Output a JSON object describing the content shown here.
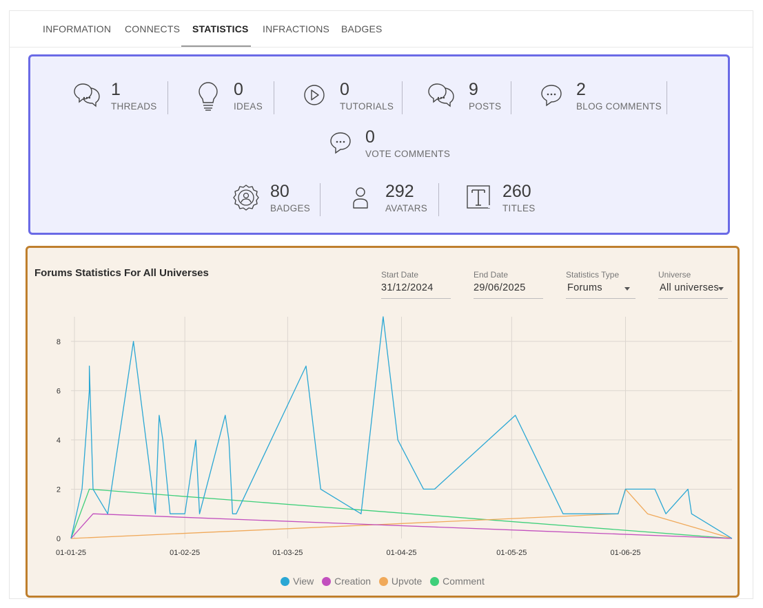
{
  "tabs": [
    {
      "label": "INFORMATION",
      "active": false
    },
    {
      "label": "CONNECTS",
      "active": false
    },
    {
      "label": "STATISTICS",
      "active": true
    },
    {
      "label": "INFRACTIONS",
      "active": false
    },
    {
      "label": "BADGES",
      "active": false
    }
  ],
  "stats": {
    "threads": {
      "value": "1",
      "label": "THREADS",
      "icon": "chat-bubbles-icon"
    },
    "ideas": {
      "value": "0",
      "label": "IDEAS",
      "icon": "lightbulb-icon"
    },
    "tutorials": {
      "value": "0",
      "label": "TUTORIALS",
      "icon": "play-circle-icon"
    },
    "posts": {
      "value": "9",
      "label": "POSTS",
      "icon": "chat-bubbles-icon"
    },
    "blog_comments": {
      "value": "2",
      "label": "BLOG COMMENTS",
      "icon": "chat-bubble-icon"
    },
    "vote_comments": {
      "value": "0",
      "label": "VOTE COMMENTS",
      "icon": "chat-bubble-icon"
    },
    "badges": {
      "value": "80",
      "label": "BADGES",
      "icon": "badge-icon"
    },
    "avatars": {
      "value": "292",
      "label": "AVATARS",
      "icon": "user-icon"
    },
    "titles": {
      "value": "260",
      "label": "TITLES",
      "icon": "title-icon"
    }
  },
  "filters": {
    "start_date": {
      "label": "Start Date",
      "value": "31/12/2024"
    },
    "end_date": {
      "label": "End Date",
      "value": "29/06/2025"
    },
    "statistics_type": {
      "label": "Statistics Type",
      "value": "Forums"
    },
    "universe": {
      "label": "Universe",
      "value": "All universes"
    }
  },
  "colors": {
    "view": "#2aa7d4",
    "creation": "#c24fbe",
    "upvote": "#f0a95a",
    "comment": "#3ecf7a",
    "stats_box_border": "#6a6ae6",
    "chart_box_border": "#bf7f2d"
  },
  "chart_data": {
    "type": "line",
    "title": "Forums Statistics For All Universes",
    "xlabel": "",
    "ylabel": "",
    "x_domain": [
      "2025-01-01",
      "2025-06-30"
    ],
    "ylim": [
      0,
      9
    ],
    "y_ticks": [
      0,
      2,
      4,
      6,
      8
    ],
    "x_ticks": [
      {
        "date": "2025-01-01",
        "label": "01-01-25"
      },
      {
        "date": "2025-02-01",
        "label": "01-02-25"
      },
      {
        "date": "2025-03-01",
        "label": "01-03-25"
      },
      {
        "date": "2025-04-01",
        "label": "01-04-25"
      },
      {
        "date": "2025-05-01",
        "label": "01-05-25"
      },
      {
        "date": "2025-06-01",
        "label": "01-06-25"
      }
    ],
    "grid": true,
    "legend": "bottom",
    "series": [
      {
        "name": "View",
        "color": "#2aa7d4",
        "points": [
          [
            "2025-01-01",
            0
          ],
          [
            "2025-01-04",
            2
          ],
          [
            "2025-01-06",
            6
          ],
          [
            "2025-01-06",
            7
          ],
          [
            "2025-01-07",
            2
          ],
          [
            "2025-01-11",
            1
          ],
          [
            "2025-01-18",
            8
          ],
          [
            "2025-01-24",
            1
          ],
          [
            "2025-01-25",
            5
          ],
          [
            "2025-01-26",
            4
          ],
          [
            "2025-01-28",
            1
          ],
          [
            "2025-02-01",
            1
          ],
          [
            "2025-02-03",
            3
          ],
          [
            "2025-02-04",
            4
          ],
          [
            "2025-02-05",
            1
          ],
          [
            "2025-02-12",
            5
          ],
          [
            "2025-02-13",
            4
          ],
          [
            "2025-02-14",
            1
          ],
          [
            "2025-02-15",
            1
          ],
          [
            "2025-03-06",
            7
          ],
          [
            "2025-03-10",
            2
          ],
          [
            "2025-03-21",
            1
          ],
          [
            "2025-03-27",
            9
          ],
          [
            "2025-03-31",
            4
          ],
          [
            "2025-04-07",
            2
          ],
          [
            "2025-04-10",
            2
          ],
          [
            "2025-05-02",
            5
          ],
          [
            "2025-05-15",
            1
          ],
          [
            "2025-05-29",
            1
          ],
          [
            "2025-05-30",
            1
          ],
          [
            "2025-06-01",
            2
          ],
          [
            "2025-06-09",
            2
          ],
          [
            "2025-06-12",
            1
          ],
          [
            "2025-06-18",
            2
          ],
          [
            "2025-06-19",
            1
          ],
          [
            "2025-06-30",
            0
          ]
        ]
      },
      {
        "name": "Creation",
        "color": "#c24fbe",
        "points": [
          [
            "2025-01-01",
            0
          ],
          [
            "2025-01-07",
            1
          ],
          [
            "2025-06-30",
            0
          ]
        ]
      },
      {
        "name": "Upvote",
        "color": "#f0a95a",
        "points": [
          [
            "2025-01-01",
            0
          ],
          [
            "2025-05-30",
            1
          ],
          [
            "2025-06-01",
            2
          ],
          [
            "2025-06-07",
            1
          ],
          [
            "2025-06-30",
            0
          ]
        ]
      },
      {
        "name": "Comment",
        "color": "#3ecf7a",
        "points": [
          [
            "2025-01-01",
            0
          ],
          [
            "2025-01-06",
            2
          ],
          [
            "2025-06-30",
            0
          ]
        ]
      }
    ]
  }
}
